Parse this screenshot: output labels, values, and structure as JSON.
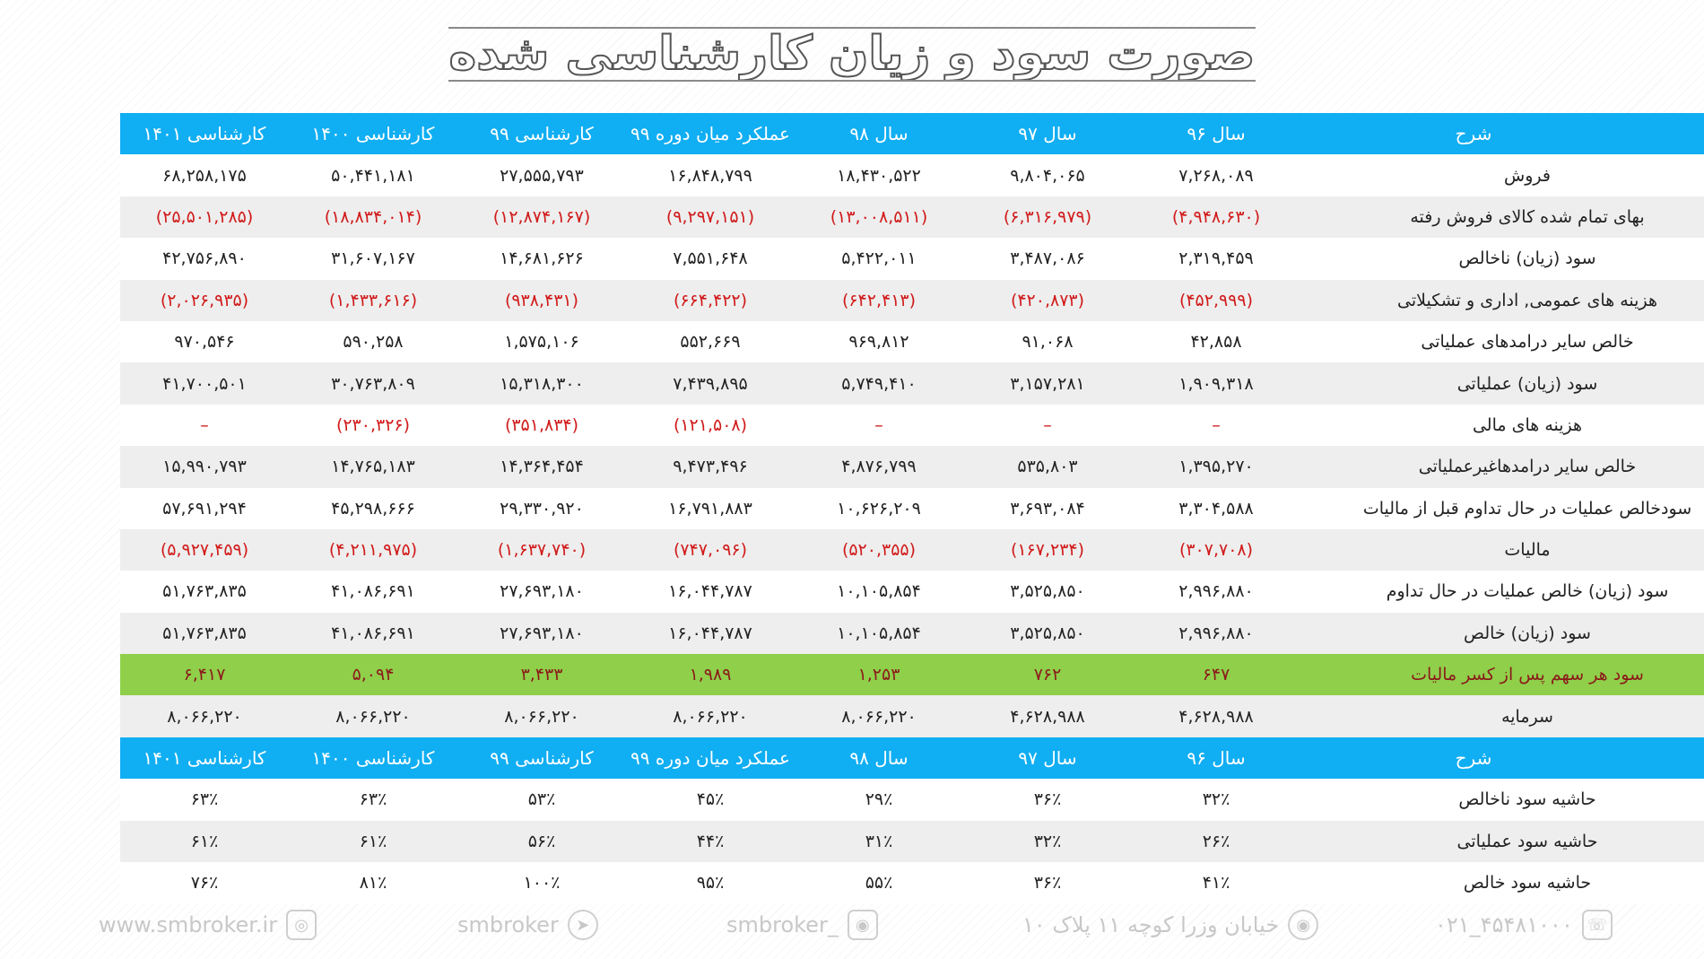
{
  "title": "صورت سود و زیان کارشناسی شده",
  "columns": [
    "شرح",
    "سال ۹۶",
    "سال ۹۷",
    "سال ۹۸",
    "عملکرد میان دوره ۹۹",
    "کارشناسی ۹۹",
    "کارشناسی ۱۴۰۰",
    "کارشناسی ۱۴۰۱"
  ],
  "rows": [
    {
      "label": "فروش",
      "values": [
        "۷,۲۶۸,۰۸۹",
        "۹,۸۰۴,۰۶۵",
        "۱۸,۴۳۰,۵۲۲",
        "۱۶,۸۴۸,۷۹۹",
        "۲۷,۵۵۵,۷۹۳",
        "۵۰,۴۴۱,۱۸۱",
        "۶۸,۲۵۸,۱۷۵"
      ]
    },
    {
      "label": "بهای تمام شده کالای فروش رفته",
      "values": [
        "(۴,۹۴۸,۶۳۰)",
        "(۶,۳۱۶,۹۷۹)",
        "(۱۳,۰۰۸,۵۱۱)",
        "(۹,۲۹۷,۱۵۱)",
        "(۱۲,۸۷۴,۱۶۷)",
        "(۱۸,۸۳۴,۰۱۴)",
        "(۲۵,۵۰۱,۲۸۵)"
      ]
    },
    {
      "label": "سود (زیان) ناخالص",
      "values": [
        "۲,۳۱۹,۴۵۹",
        "۳,۴۸۷,۰۸۶",
        "۵,۴۲۲,۰۱۱",
        "۷,۵۵۱,۶۴۸",
        "۱۴,۶۸۱,۶۲۶",
        "۳۱,۶۰۷,۱۶۷",
        "۴۲,۷۵۶,۸۹۰"
      ]
    },
    {
      "label": "هزینه های عمومی, اداری و تشکیلاتی",
      "values": [
        "(۴۵۲,۹۹۹)",
        "(۴۲۰,۸۷۳)",
        "(۶۴۲,۴۱۳)",
        "(۶۶۴,۴۲۲)",
        "(۹۳۸,۴۳۱)",
        "(۱,۴۳۳,۶۱۶)",
        "(۲,۰۲۶,۹۳۵)"
      ]
    },
    {
      "label": "خالص سایر درامدهای  عملیاتی",
      "values": [
        "۴۲,۸۵۸",
        "۹۱,۰۶۸",
        "۹۶۹,۸۱۲",
        "۵۵۲,۶۶۹",
        "۱,۵۷۵,۱۰۶",
        "۵۹۰,۲۵۸",
        "۹۷۰,۵۴۶"
      ]
    },
    {
      "label": "سود (زیان) عملیاتی",
      "values": [
        "۱,۹۰۹,۳۱۸",
        "۳,۱۵۷,۲۸۱",
        "۵,۷۴۹,۴۱۰",
        "۷,۴۳۹,۸۹۵",
        "۱۵,۳۱۸,۳۰۰",
        "۳۰,۷۶۳,۸۰۹",
        "۴۱,۷۰۰,۵۰۱"
      ]
    },
    {
      "label": "هزینه های مالی",
      "values": [
        "–",
        "–",
        "–",
        "(۱۲۱,۵۰۸)",
        "(۳۵۱,۸۳۴)",
        "(۲۳۰,۳۲۶)",
        "–"
      ]
    },
    {
      "label": "خالص سایر درامدهاغیرعملیاتی",
      "values": [
        "۱,۳۹۵,۲۷۰",
        "۵۳۵,۸۰۳",
        "۴,۸۷۶,۷۹۹",
        "۹,۴۷۳,۴۹۶",
        "۱۴,۳۶۴,۴۵۴",
        "۱۴,۷۶۵,۱۸۳",
        "۱۵,۹۹۰,۷۹۳"
      ]
    },
    {
      "label": "سودخالص عملیات در حال تداوم قبل از مالیات",
      "values": [
        "۳,۳۰۴,۵۸۸",
        "۳,۶۹۳,۰۸۴",
        "۱۰,۶۲۶,۲۰۹",
        "۱۶,۷۹۱,۸۸۳",
        "۲۹,۳۳۰,۹۲۰",
        "۴۵,۲۹۸,۶۶۶",
        "۵۷,۶۹۱,۲۹۴"
      ]
    },
    {
      "label": "مالیات",
      "values": [
        "(۳۰۷,۷۰۸)",
        "(۱۶۷,۲۳۴)",
        "(۵۲۰,۳۵۵)",
        "(۷۴۷,۰۹۶)",
        "(۱,۶۳۷,۷۴۰)",
        "(۴,۲۱۱,۹۷۵)",
        "(۵,۹۲۷,۴۵۹)"
      ]
    },
    {
      "label": "سود (زیان) خالص عملیات در حال تداوم",
      "values": [
        "۲,۹۹۶,۸۸۰",
        "۳,۵۲۵,۸۵۰",
        "۱۰,۱۰۵,۸۵۴",
        "۱۶,۰۴۴,۷۸۷",
        "۲۷,۶۹۳,۱۸۰",
        "۴۱,۰۸۶,۶۹۱",
        "۵۱,۷۶۳,۸۳۵"
      ]
    },
    {
      "label": "سود (زیان) خالص",
      "values": [
        "۲,۹۹۶,۸۸۰",
        "۳,۵۲۵,۸۵۰",
        "۱۰,۱۰۵,۸۵۴",
        "۱۶,۰۴۴,۷۸۷",
        "۲۷,۶۹۳,۱۸۰",
        "۴۱,۰۸۶,۶۹۱",
        "۵۱,۷۶۳,۸۳۵"
      ]
    },
    {
      "label": "سود هر سهم پس از کسر مالیات",
      "values": [
        "۶۴۷",
        "۷۶۲",
        "۱,۲۵۳",
        "۱,۹۸۹",
        "۳,۴۳۳",
        "۵,۰۹۴",
        "۶,۴۱۷"
      ]
    },
    {
      "label": "سرمایه",
      "values": [
        "۴,۶۲۸,۹۸۸",
        "۴,۶۲۸,۹۸۸",
        "۸,۰۶۶,۲۲۰",
        "۸,۰۶۶,۲۲۰",
        "۸,۰۶۶,۲۲۰",
        "۸,۰۶۶,۲۲۰",
        "۸,۰۶۶,۲۲۰"
      ]
    }
  ],
  "margin_rows": [
    {
      "label": "حاشیه سود ناخالص",
      "values": [
        "۳۲٪",
        "۳۶٪",
        "۲۹٪",
        "۴۵٪",
        "۵۳٪",
        "۶۳٪",
        "۶۳٪"
      ]
    },
    {
      "label": "حاشیه سود عملیاتی",
      "values": [
        "۲۶٪",
        "۳۲٪",
        "۳۱٪",
        "۴۴٪",
        "۵۶٪",
        "۶۱٪",
        "۶۱٪"
      ]
    },
    {
      "label": "حاشیه سود خالص",
      "values": [
        "۴۱٪",
        "۳۶٪",
        "۵۵٪",
        "۹۵٪",
        "۱۰۰٪",
        "۸۱٪",
        "۷۶٪"
      ]
    }
  ],
  "footer": {
    "phone": "۰۲۱_۴۵۴۸۱۰۰۰",
    "address": "خیابان وزرا کوچه ۱۱ پلاک ۱۰",
    "instagram": "smbroker_",
    "telegram": "smbroker",
    "website": "www.smbroker.ir"
  },
  "colors": {
    "header_bg": "#10aef2",
    "highlight_bg": "#8fcf4a",
    "highlight_text": "#8b1a1a",
    "negative_text": "#d11a1a",
    "stripe_bg": "#eeeeee"
  },
  "icons": {
    "phone": "phone-icon",
    "address": "location-pin-icon",
    "instagram": "instagram-icon",
    "telegram": "telegram-icon",
    "website": "globe-icon"
  }
}
